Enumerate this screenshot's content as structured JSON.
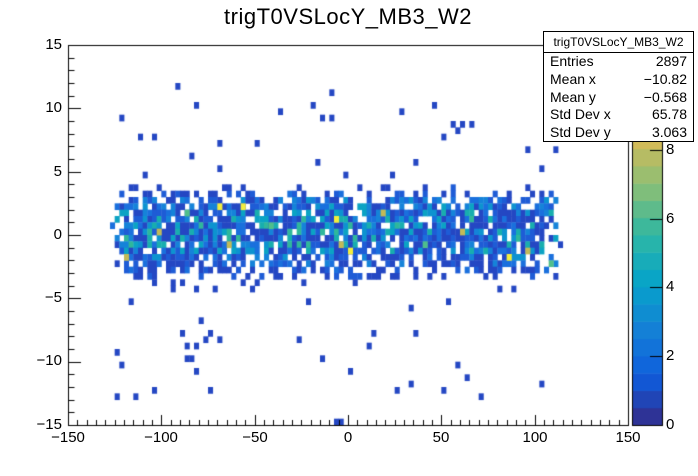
{
  "title": "trigT0VSLocY_MB3_W2",
  "stats_box": {
    "header": "trigT0VSLocY_MB3_W2",
    "rows": [
      {
        "label": "Entries",
        "value": "2897"
      },
      {
        "label": "Mean x",
        "value": "−10.82"
      },
      {
        "label": "Mean y",
        "value": "−0.568"
      },
      {
        "label": "Std Dev x",
        "value": "65.78"
      },
      {
        "label": "Std Dev y",
        "value": "3.063"
      }
    ]
  },
  "chart_data": {
    "type": "heatmap",
    "title": "trigT0VSLocY_MB3_W2",
    "x_range": [
      -150,
      150
    ],
    "y_range": [
      -15,
      15
    ],
    "z_range": [
      0,
      11
    ],
    "z_scale_max": 11.05,
    "x_ticks": [
      -150,
      -100,
      -50,
      0,
      50,
      100,
      150
    ],
    "y_ticks": [
      -15,
      -10,
      -5,
      0,
      5,
      10,
      15
    ],
    "z_ticks": [
      0,
      2,
      4,
      6,
      8
    ],
    "x_tick_labels": [
      "−150",
      "−100",
      "−50",
      "0",
      "50",
      "100",
      "150"
    ],
    "y_tick_labels": [
      "−15",
      "−10",
      "−5",
      "0",
      "5",
      "10",
      "15"
    ],
    "z_tick_labels": [
      "0",
      "2",
      "4",
      "6",
      "8"
    ],
    "x_minor_step": 5,
    "y_minor_step": 1,
    "bin_width_x": 2.5,
    "bin_width_y": 0.5,
    "data_x_extent": [
      -127.5,
      112.5
    ],
    "stats": {
      "entries": 2897,
      "mean_x": -10.82,
      "mean_y": -0.568,
      "std_dev_x": 65.78,
      "std_dev_y": 3.063
    },
    "grid": false,
    "legend_position": "right-colorbar",
    "count_colors": [
      "#2447c3",
      "#1e5cd6",
      "#1a70dd",
      "#1583d9",
      "#0d93d0",
      "#0ba3c4",
      "#18aeae",
      "#2fb79b",
      "#4fbf8b",
      "#c2ba57",
      "#f3ee3c"
    ],
    "colorbar_bands": [
      "#2e3396",
      "#2045b6",
      "#1257d4",
      "#1066db",
      "#1273d9",
      "#1480d6",
      "#0f8dd1",
      "#0a9acd",
      "#09a5c6",
      "#18acb9",
      "#27b4ab",
      "#3db89b",
      "#5ebb8b",
      "#7fbe7b",
      "#9bbe6f",
      "#b6bc64",
      "#d1bb59",
      "#e1c04b",
      "#f2c53d",
      "#fdcd2f",
      "#fbdf22",
      "#faf214"
    ],
    "band_rows": [
      [
        3.5,
        0.18,
        0.15
      ],
      [
        3.0,
        0.35,
        0.22
      ],
      [
        2.5,
        0.65,
        0.45
      ],
      [
        2.0,
        0.85,
        0.6
      ],
      [
        1.5,
        0.88,
        0.7
      ],
      [
        1.0,
        0.88,
        0.75
      ],
      [
        0.5,
        0.9,
        0.8
      ],
      [
        0.0,
        0.9,
        0.8
      ],
      [
        -0.5,
        0.88,
        0.8
      ],
      [
        -1.0,
        0.86,
        0.75
      ],
      [
        -1.5,
        0.82,
        0.65
      ],
      [
        -2.0,
        0.75,
        0.52
      ],
      [
        -2.5,
        0.6,
        0.38
      ],
      [
        -3.0,
        0.45,
        0.25
      ],
      [
        -3.5,
        0.25,
        0.16
      ],
      [
        -4.0,
        0.12,
        0.1
      ],
      [
        -4.5,
        0.06,
        0.08
      ]
    ],
    "outlier_regions": [
      {
        "y_min": 4.5,
        "y_max": 12.0,
        "p": 0.016
      },
      {
        "y_min": -13.0,
        "y_max": -5.0,
        "p": 0.022
      }
    ],
    "hot_bins": [
      [
        -119,
        -1.75,
        10
      ],
      [
        -100.5,
        0.25,
        10
      ],
      [
        -86,
        1.75,
        9
      ],
      [
        -69,
        2.25,
        11
      ],
      [
        -56.5,
        2.25,
        11
      ],
      [
        -64,
        -0.75,
        10
      ],
      [
        -41,
        0.75,
        9
      ],
      [
        -7,
        1.25,
        11
      ],
      [
        -4.5,
        -0.75,
        10
      ],
      [
        1,
        -1.25,
        11
      ],
      [
        19,
        1.75,
        10
      ],
      [
        41.5,
        -0.75,
        9
      ],
      [
        61,
        0.25,
        10
      ],
      [
        86.5,
        -1.75,
        11
      ],
      [
        97,
        -1.25,
        10
      ],
      [
        108.5,
        -2.25,
        9
      ]
    ],
    "extra_bins": [
      [
        -7,
        -14.75,
        1
      ],
      [
        -3.5,
        -14.75,
        1
      ],
      [
        -92,
        11.5,
        1
      ],
      [
        -10,
        11.25,
        1
      ],
      [
        45,
        10.25,
        1
      ],
      [
        -37,
        9.75,
        1
      ],
      [
        62,
        8.75,
        1
      ],
      [
        113,
        -0.75,
        1
      ],
      [
        -121,
        9.25,
        1
      ]
    ],
    "seed": 11
  }
}
